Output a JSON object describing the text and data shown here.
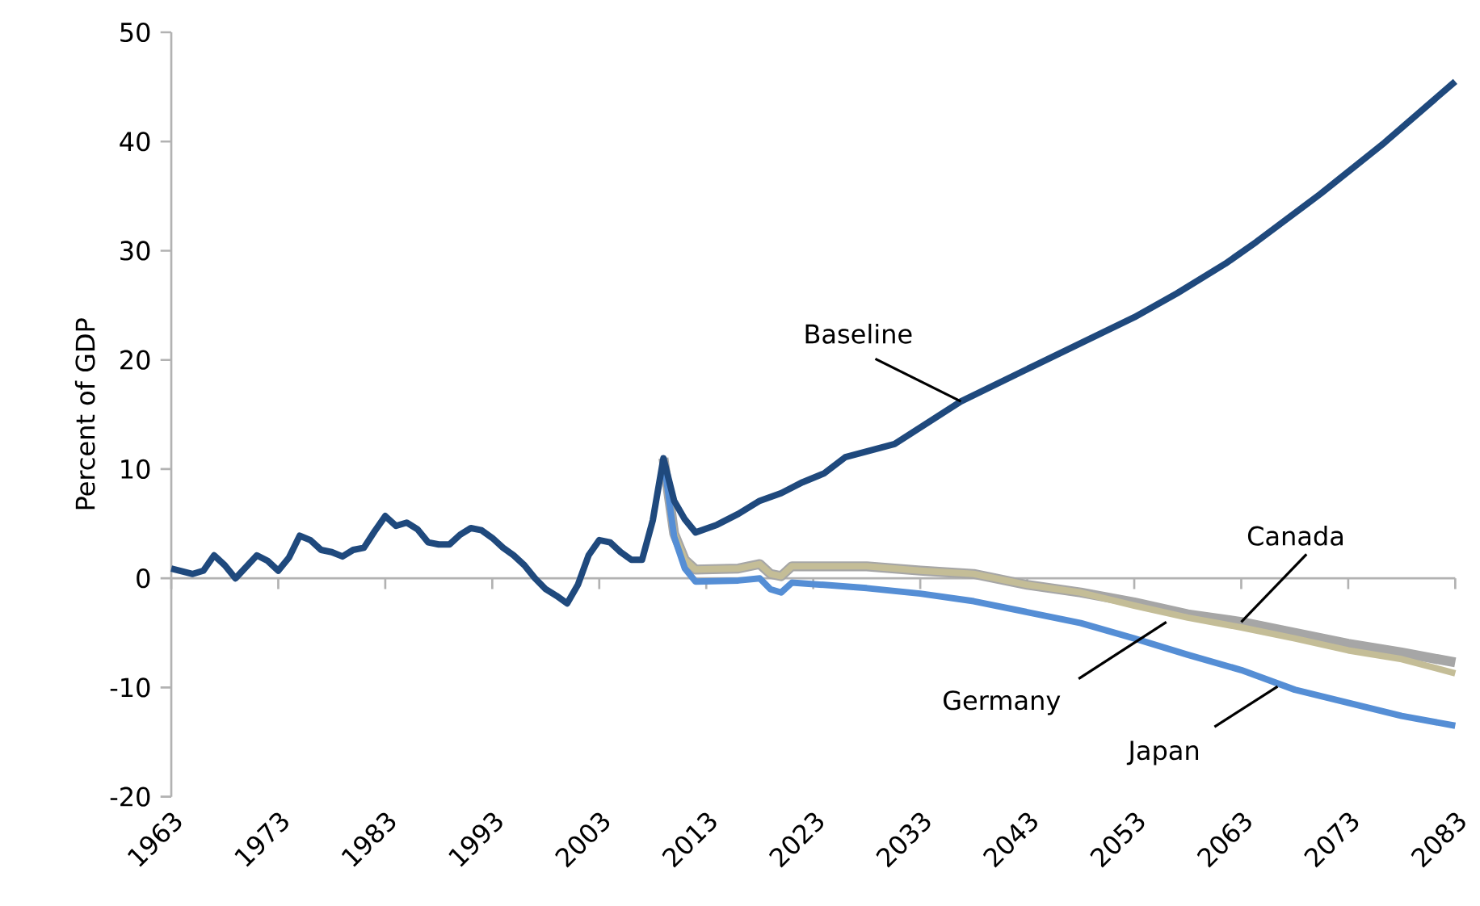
{
  "chart_data": {
    "type": "line",
    "ylabel": "Percent of GDP",
    "xlim": [
      1963,
      2083
    ],
    "ylim": [
      -20,
      50
    ],
    "xticks": [
      1963,
      1973,
      1983,
      1993,
      2003,
      2013,
      2023,
      2033,
      2043,
      2053,
      2063,
      2073,
      2083
    ],
    "yticks": [
      -20,
      -10,
      0,
      10,
      20,
      30,
      40,
      50
    ],
    "marker": "none",
    "line_style": "solid",
    "series": [
      {
        "name": "Baseline",
        "color": "#1f497d",
        "x": [
          1963,
          1965,
          1966,
          1967,
          1968,
          1969,
          1971,
          1972,
          1973,
          1974,
          1975,
          1976,
          1977,
          1978,
          1979,
          1980,
          1981,
          1982,
          1983,
          1984,
          1985,
          1986,
          1987,
          1988,
          1989,
          1990,
          1991,
          1992,
          1993,
          1994,
          1995,
          1996,
          1997,
          1998,
          1999,
          2000,
          2001,
          2002,
          2003,
          2004,
          2005,
          2006,
          2007,
          2008,
          2009,
          2010,
          2011,
          2012,
          2014,
          2016,
          2018,
          2020,
          2022,
          2024,
          2026,
          2030.6,
          2036.8,
          2043.5,
          2053,
          2057,
          2061.5,
          2064.4,
          2070.4,
          2076.4,
          2083
        ],
        "values": [
          0.9,
          0.4,
          0.7,
          2.1,
          1.2,
          0,
          2.1,
          1.6,
          0.7,
          1.9,
          3.9,
          3.5,
          2.6,
          2.4,
          2.0,
          2.6,
          2.8,
          4.3,
          5.7,
          4.8,
          5.1,
          4.5,
          3.3,
          3.1,
          3.1,
          4.0,
          4.6,
          4.4,
          3.7,
          2.8,
          2.1,
          1.2,
          0,
          -1.0,
          -1.6,
          -2.3,
          -0.6,
          2.1,
          3.5,
          3.3,
          2.4,
          1.7,
          1.7,
          5.3,
          11.0,
          7.1,
          5.4,
          4.2,
          4.9,
          5.9,
          7.1,
          7.8,
          8.8,
          9.6,
          11.1,
          12.3,
          16.2,
          19.4,
          23.9,
          26.1,
          28.8,
          30.8,
          35.2,
          39.9,
          45.5
        ]
      },
      {
        "name": "Japan",
        "color": "#558ed5",
        "x": [
          2009,
          2010,
          2011,
          2012,
          2016,
          2018,
          2019,
          2020,
          2021,
          2024,
          2028,
          2033,
          2038,
          2043,
          2048,
          2053,
          2058,
          2063,
          2068,
          2073,
          2078,
          2083
        ],
        "values": [
          11.0,
          3.8,
          0.9,
          -0.3,
          -0.2,
          0.0,
          -1.0,
          -1.3,
          -0.4,
          -0.6,
          -0.9,
          -1.4,
          -2.1,
          -3.1,
          -4.1,
          -5.5,
          -7.0,
          -8.4,
          -10.2,
          -11.4,
          -12.6,
          -13.5
        ]
      },
      {
        "name": "Canada",
        "color": "#a6a6a6",
        "x": [
          2009,
          2010,
          2011,
          2012,
          2016,
          2018,
          2019,
          2020,
          2021,
          2024,
          2028,
          2033,
          2038,
          2043,
          2048,
          2053,
          2058,
          2063,
          2068,
          2073,
          2078,
          2083
        ],
        "values": [
          11.0,
          4.1,
          1.7,
          0.8,
          0.9,
          1.3,
          0.4,
          0.2,
          1.1,
          1.1,
          1.1,
          0.7,
          0.4,
          -0.6,
          -1.3,
          -2.2,
          -3.3,
          -4.0,
          -5.0,
          -6.0,
          -6.8,
          -7.7
        ]
      },
      {
        "name": "Germany",
        "color": "#c4bd97",
        "x": [
          2009,
          2010,
          2011,
          2012,
          2016,
          2018,
          2019,
          2020,
          2021,
          2024,
          2028,
          2033,
          2038,
          2043,
          2048,
          2053,
          2058,
          2063,
          2068,
          2073,
          2078,
          2083
        ],
        "values": [
          11.0,
          4.1,
          1.7,
          0.8,
          0.9,
          1.3,
          0.4,
          0.2,
          1.1,
          1.1,
          1.1,
          0.7,
          0.4,
          -0.6,
          -1.3,
          -2.5,
          -3.6,
          -4.5,
          -5.5,
          -6.6,
          -7.4,
          -8.7
        ]
      }
    ]
  }
}
